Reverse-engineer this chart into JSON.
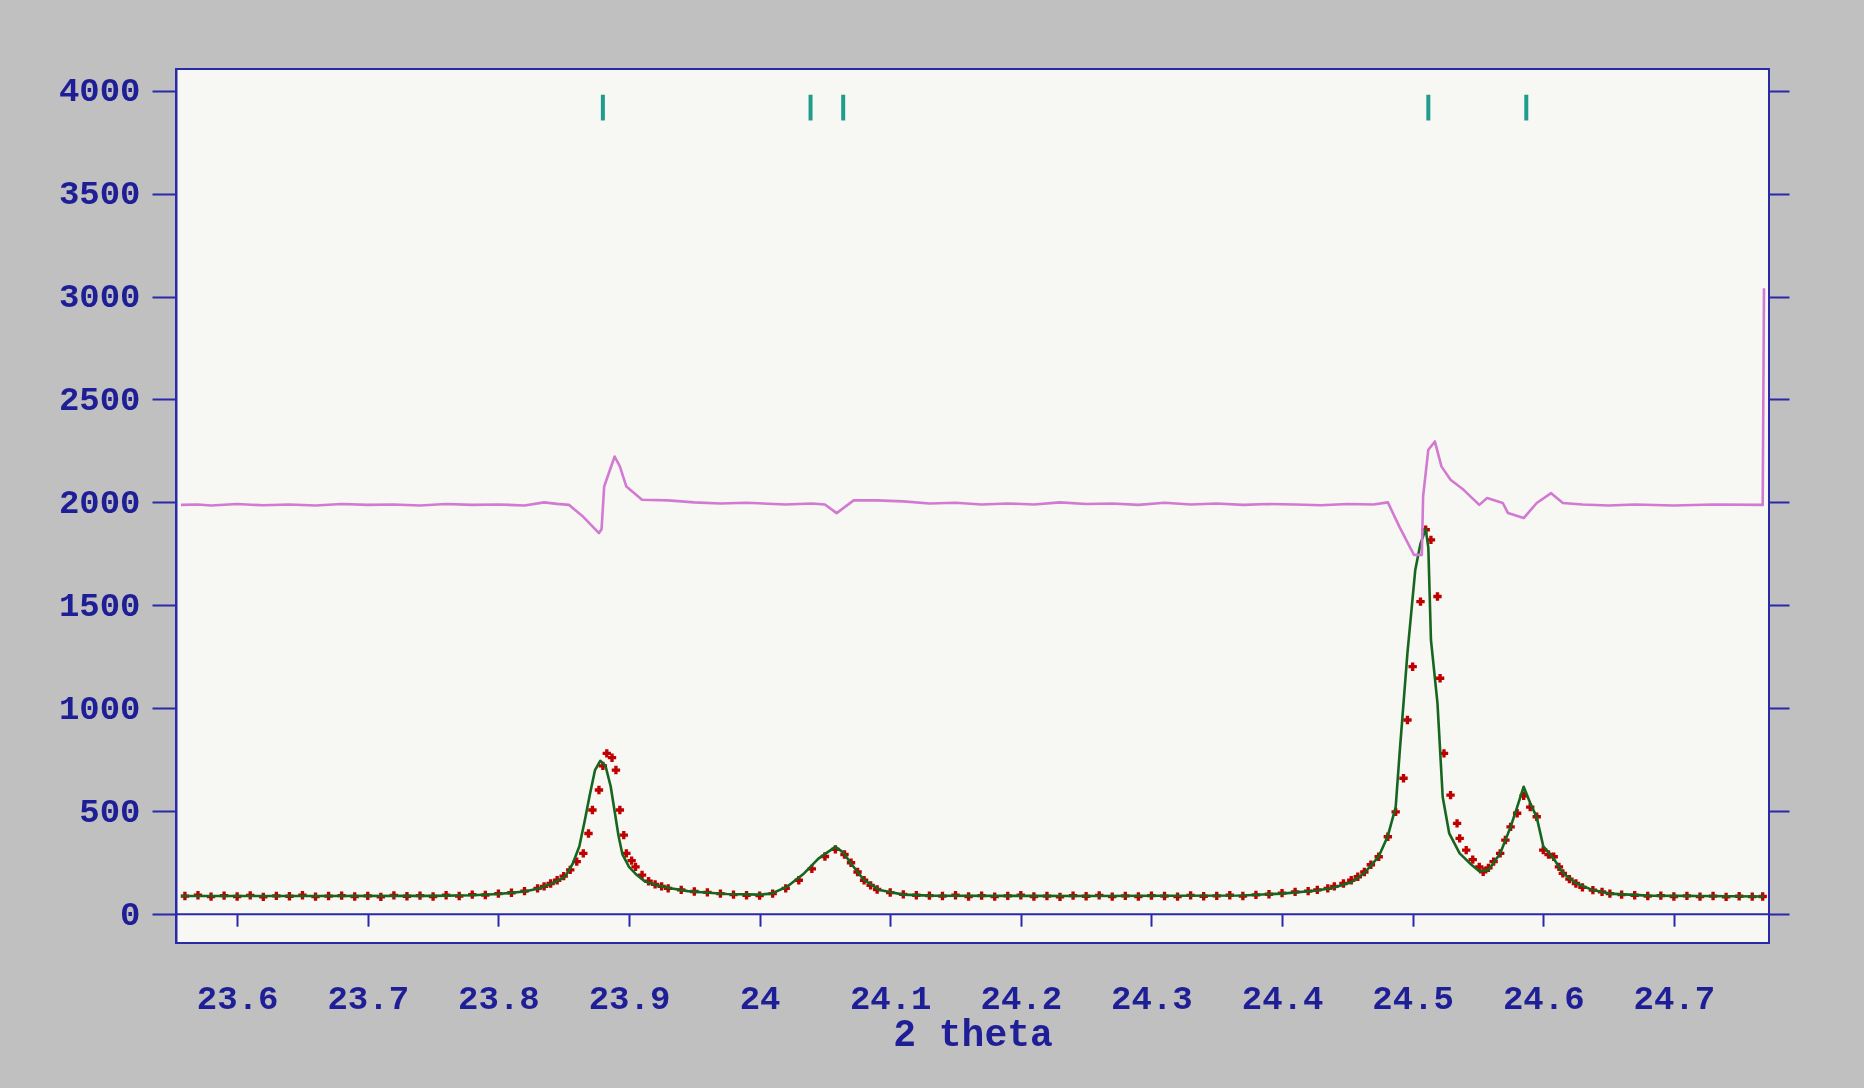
{
  "chart_data": {
    "type": "line",
    "xlabel": "2 theta",
    "xlim": [
      23.557,
      24.769
    ],
    "xticks": [
      23.6,
      23.7,
      23.8,
      23.9,
      24,
      24.1,
      24.2,
      24.3,
      24.4,
      24.5,
      24.6,
      24.7
    ],
    "ylim": [
      -140,
      4105
    ],
    "yticks": [
      0,
      500,
      1000,
      1500,
      2000,
      2500,
      3000,
      3500,
      4000
    ],
    "grid": false,
    "ref_lines": [
      {
        "axis": "y",
        "value": 0,
        "color": "#2a2aa8"
      }
    ],
    "series": [
      {
        "type": "scatter",
        "marker": "cross",
        "color": "#c00000",
        "x": [
          23.56,
          23.57,
          23.58,
          23.59,
          23.6,
          23.61,
          23.62,
          23.63,
          23.64,
          23.65,
          23.66,
          23.67,
          23.68,
          23.69,
          23.7,
          23.71,
          23.72,
          23.73,
          23.74,
          23.75,
          23.76,
          23.77,
          23.78,
          23.79,
          23.8,
          23.81,
          23.82,
          23.83,
          23.835,
          23.84,
          23.845,
          23.85,
          23.855,
          23.86,
          23.865,
          23.869,
          23.872,
          23.877,
          23.88,
          23.883,
          23.887,
          23.89,
          23.893,
          23.896,
          23.898,
          23.902,
          23.905,
          23.91,
          23.915,
          23.92,
          23.925,
          23.93,
          23.94,
          23.95,
          23.96,
          23.97,
          23.98,
          23.99,
          24.0,
          24.01,
          24.02,
          24.03,
          24.04,
          24.05,
          24.058,
          24.065,
          24.07,
          24.075,
          24.08,
          24.085,
          24.09,
          24.1,
          24.11,
          24.12,
          24.13,
          24.14,
          24.15,
          24.16,
          24.17,
          24.18,
          24.19,
          24.2,
          24.21,
          24.22,
          24.23,
          24.24,
          24.25,
          24.26,
          24.27,
          24.28,
          24.29,
          24.3,
          24.31,
          24.32,
          24.33,
          24.34,
          24.35,
          24.36,
          24.37,
          24.38,
          24.39,
          24.4,
          24.41,
          24.42,
          24.427,
          24.435,
          24.44,
          24.447,
          24.453,
          24.458,
          24.463,
          24.468,
          24.474,
          24.481,
          24.487,
          24.493,
          24.496,
          24.5,
          24.506,
          24.51,
          24.514,
          24.519,
          24.521,
          24.524,
          24.529,
          24.534,
          24.536,
          24.541,
          24.546,
          24.551,
          24.554,
          24.558,
          24.562,
          24.567,
          24.571,
          24.575,
          24.58,
          24.585,
          24.59,
          24.595,
          24.6,
          24.604,
          24.608,
          24.612,
          24.615,
          24.62,
          24.625,
          24.63,
          24.638,
          24.645,
          24.651,
          24.66,
          24.67,
          24.68,
          24.69,
          24.7,
          24.71,
          24.72,
          24.73,
          24.74,
          24.75,
          24.76,
          24.768
        ],
        "values": [
          88,
          92,
          85,
          90,
          86,
          91,
          84,
          89,
          87,
          92,
          85,
          88,
          90,
          86,
          89,
          84,
          91,
          87,
          90,
          86,
          92,
          88,
          95,
          93,
          100,
          104,
          112,
          125,
          135,
          149,
          165,
          185,
          215,
          255,
          295,
          392,
          506,
          603,
          720,
          781,
          760,
          700,
          506,
          384,
          295,
          260,
          230,
          190,
          160,
          145,
          135,
          125,
          118,
          110,
          106,
          100,
          95,
          92,
          90,
          100,
          125,
          165,
          220,
          280,
          315,
          290,
          250,
          205,
          165,
          140,
          120,
          105,
          96,
          92,
          90,
          88,
          92,
          86,
          90,
          85,
          89,
          92,
          86,
          88,
          84,
          90,
          87,
          91,
          85,
          89,
          86,
          90,
          88,
          85,
          91,
          87,
          89,
          92,
          88,
          94,
          97,
          102,
          108,
          112,
          118,
          125,
          135,
          149,
          165,
          182,
          205,
          240,
          279,
          376,
          497,
          660,
          943,
          1202,
          1518,
          1867,
          1818,
          1543,
          1146,
          781,
          578,
          441,
          368,
          311,
          265,
          230,
          206,
          225,
          255,
          295,
          360,
          424,
          490,
          575,
          520,
          473,
          311,
          290,
          279,
          230,
          198,
          170,
          149,
          130,
          117,
          108,
          100,
          95,
          92,
          88,
          90,
          86,
          89,
          85,
          88,
          84,
          87,
          85,
          86
        ]
      },
      {
        "color": "#17661f",
        "x": [
          23.557,
          23.65,
          23.75,
          23.78,
          23.8,
          23.82,
          23.831,
          23.841,
          23.851,
          23.857,
          23.862,
          23.866,
          23.87,
          23.874,
          23.878,
          23.882,
          23.886,
          23.889,
          23.892,
          23.895,
          23.9,
          23.906,
          23.912,
          23.917,
          23.925,
          23.933,
          23.945,
          23.958,
          23.975,
          24.0,
          24.009,
          24.021,
          24.034,
          24.045,
          24.058,
          24.064,
          24.07,
          24.08,
          24.092,
          24.11,
          24.13,
          24.25,
          24.37,
          24.4,
          24.427,
          24.44,
          24.453,
          24.463,
          24.474,
          24.481,
          24.487,
          24.49,
          24.496,
          24.502,
          24.506,
          24.51,
          24.512,
          24.514,
          24.519,
          24.523,
          24.528,
          24.536,
          24.545,
          24.551,
          24.558,
          24.567,
          24.575,
          24.58,
          24.585,
          24.59,
          24.595,
          24.6,
          24.608,
          24.615,
          24.625,
          24.638,
          24.651,
          24.68,
          24.72,
          24.769
        ],
        "values": [
          88,
          88,
          89,
          92,
          98,
          110,
          125,
          149,
          181,
          246,
          330,
          450,
          580,
          700,
          745,
          720,
          620,
          500,
          380,
          290,
          230,
          190,
          160,
          149,
          135,
          125,
          112,
          105,
          98,
          95,
          100,
          133,
          198,
          270,
          327,
          300,
          246,
          165,
          117,
          95,
          90,
          88,
          91,
          100,
          115,
          130,
          155,
          200,
          280,
          380,
          520,
          781,
          1268,
          1672,
          1800,
          1870,
          1780,
          1332,
          1025,
          569,
          392,
          295,
          240,
          208,
          215,
          295,
          424,
          520,
          619,
          540,
          470,
          330,
          270,
          200,
          150,
          117,
          100,
          90,
          88,
          86
        ]
      },
      {
        "color": "#d27ad2",
        "x": [
          23.557,
          23.57,
          23.58,
          23.6,
          23.62,
          23.64,
          23.66,
          23.68,
          23.7,
          23.72,
          23.74,
          23.76,
          23.78,
          23.8,
          23.82,
          23.835,
          23.845,
          23.854,
          23.865,
          23.877,
          23.879,
          23.881,
          23.889,
          23.893,
          23.898,
          23.905,
          23.91,
          23.93,
          23.95,
          23.97,
          23.99,
          24.02,
          24.04,
          24.05,
          24.059,
          24.072,
          24.09,
          24.11,
          24.13,
          24.15,
          24.17,
          24.19,
          24.21,
          24.23,
          24.25,
          24.27,
          24.29,
          24.31,
          24.33,
          24.35,
          24.37,
          24.39,
          24.41,
          24.43,
          24.45,
          24.47,
          24.481,
          24.49,
          24.501,
          24.507,
          24.508,
          24.512,
          24.517,
          24.522,
          24.529,
          24.539,
          24.551,
          24.557,
          24.569,
          24.573,
          24.585,
          24.595,
          24.606,
          24.615,
          24.63,
          24.65,
          24.67,
          24.7,
          24.73,
          24.768,
          24.769
        ],
        "values": [
          1988,
          1990,
          1985,
          1992,
          1986,
          1990,
          1985,
          1992,
          1988,
          1990,
          1985,
          1992,
          1988,
          1990,
          1985,
          2000,
          1993,
          1988,
          1930,
          1851,
          1870,
          2077,
          2223,
          2175,
          2077,
          2040,
          2013,
          2010,
          2000,
          1995,
          1998,
          1990,
          1995,
          1990,
          1948,
          2010,
          2010,
          2005,
          1995,
          1998,
          1990,
          1995,
          1990,
          2000,
          1992,
          1995,
          1988,
          1998,
          1990,
          1995,
          1988,
          1992,
          1990,
          1986,
          1992,
          1990,
          2000,
          1880,
          1745,
          1745,
          2029,
          2256,
          2296,
          2175,
          2110,
          2061,
          1988,
          2021,
          1997,
          1948,
          1924,
          1997,
          2045,
          1997,
          1990,
          1985,
          1990,
          1985,
          1990,
          1988,
          3040
        ]
      },
      {
        "type": "bar",
        "color": "#1f9c8c",
        "x": [
          23.88,
          24.039,
          24.064,
          24.512,
          24.587
        ],
        "base": [
          3855,
          3855,
          3855,
          3855,
          3855
        ],
        "values": [
          125,
          125,
          125,
          125,
          125
        ]
      }
    ]
  }
}
